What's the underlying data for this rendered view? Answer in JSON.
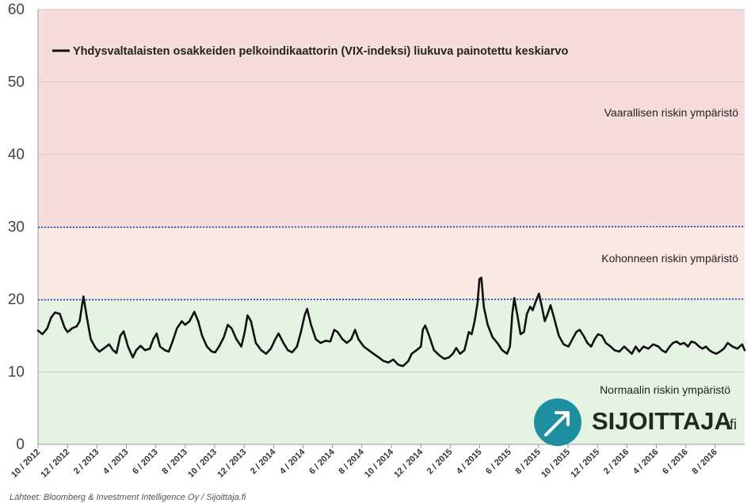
{
  "chart_data": {
    "type": "line",
    "title": "",
    "xlabel": "",
    "ylabel": "",
    "ylim": [
      0,
      60
    ],
    "yticks": [
      0,
      10,
      20,
      30,
      40,
      50,
      60
    ],
    "xlim": [
      "2012-10-01",
      "2016-09-30"
    ],
    "xtick_labels": [
      "10 / 2012",
      "12 / 2012",
      "2 / 2013",
      "4 / 2013",
      "6 / 2013",
      "8 / 2013",
      "10 / 2013",
      "12 / 2013",
      "2 / 2014",
      "4 / 2014",
      "6 / 2014",
      "8 / 2014",
      "10 / 2014",
      "12 / 2014",
      "2 / 2015",
      "4 / 2015",
      "6 / 2015",
      "8 / 2015",
      "10 / 2015",
      "12 / 2015",
      "2 / 2016",
      "4 / 2016",
      "6 / 2016",
      "8 / 2016"
    ],
    "grid": "horizontal",
    "legend_placement": "top-left",
    "zones": [
      {
        "label": "Vaarallisen riskin ympäristö",
        "from": 30,
        "to": 60,
        "color": "#f6dcdc"
      },
      {
        "label": "Kohonneen riskin ympäristö",
        "from": 20,
        "to": 30,
        "color": "#f9e9e2"
      },
      {
        "label": "Normaalin riskin ympäristö",
        "from": 0,
        "to": 20,
        "color": "#e5f4e2"
      }
    ],
    "threshold_lines": [
      20,
      30
    ],
    "colors": {
      "line": "#111111",
      "threshold": "#2a5aa8",
      "grid": "#d0c8c8"
    },
    "series": [
      {
        "name": "Yhdysvaltalaisten osakkeiden pelkoindikaattorin (VIX-indeksi) liukuva painotettu keskiarvo",
        "points": [
          [
            "2012-10-01",
            15.7
          ],
          [
            "2012-10-10",
            15.2
          ],
          [
            "2012-10-20",
            16.0
          ],
          [
            "2012-10-28",
            17.5
          ],
          [
            "2012-11-05",
            18.2
          ],
          [
            "2012-11-15",
            18.0
          ],
          [
            "2012-11-25",
            16.1
          ],
          [
            "2012-12-01",
            15.5
          ],
          [
            "2012-12-10",
            16.0
          ],
          [
            "2012-12-20",
            16.3
          ],
          [
            "2012-12-26",
            17.0
          ],
          [
            "2012-12-31",
            19.2
          ],
          [
            "2013-01-03",
            20.4
          ],
          [
            "2013-01-10",
            17.5
          ],
          [
            "2013-01-18",
            14.5
          ],
          [
            "2013-01-28",
            13.3
          ],
          [
            "2013-02-05",
            12.8
          ],
          [
            "2013-02-15",
            13.3
          ],
          [
            "2013-02-25",
            13.8
          ],
          [
            "2013-03-05",
            13.0
          ],
          [
            "2013-03-12",
            12.6
          ],
          [
            "2013-03-20",
            15.0
          ],
          [
            "2013-03-27",
            15.6
          ],
          [
            "2013-04-05",
            13.5
          ],
          [
            "2013-04-15",
            12.0
          ],
          [
            "2013-04-22",
            13.0
          ],
          [
            "2013-05-01",
            13.6
          ],
          [
            "2013-05-10",
            13.0
          ],
          [
            "2013-05-20",
            13.2
          ],
          [
            "2013-05-27",
            14.5
          ],
          [
            "2013-06-03",
            15.3
          ],
          [
            "2013-06-10",
            13.5
          ],
          [
            "2013-06-20",
            13.0
          ],
          [
            "2013-06-28",
            12.8
          ],
          [
            "2013-07-05",
            14.0
          ],
          [
            "2013-07-15",
            16.0
          ],
          [
            "2013-07-25",
            17.0
          ],
          [
            "2013-08-01",
            16.5
          ],
          [
            "2013-08-10",
            17.0
          ],
          [
            "2013-08-20",
            18.3
          ],
          [
            "2013-08-28",
            17.0
          ],
          [
            "2013-09-05",
            15.0
          ],
          [
            "2013-09-15",
            13.5
          ],
          [
            "2013-09-25",
            12.8
          ],
          [
            "2013-10-02",
            12.7
          ],
          [
            "2013-10-10",
            13.5
          ],
          [
            "2013-10-20",
            14.8
          ],
          [
            "2013-10-28",
            16.5
          ],
          [
            "2013-11-05",
            16.0
          ],
          [
            "2013-11-15",
            14.5
          ],
          [
            "2013-11-25",
            13.5
          ],
          [
            "2013-12-02",
            15.5
          ],
          [
            "2013-12-08",
            17.8
          ],
          [
            "2013-12-15",
            17.0
          ],
          [
            "2013-12-25",
            14.0
          ],
          [
            "2014-01-05",
            13.0
          ],
          [
            "2014-01-15",
            12.5
          ],
          [
            "2014-01-25",
            13.2
          ],
          [
            "2014-02-03",
            14.5
          ],
          [
            "2014-02-10",
            15.3
          ],
          [
            "2014-02-20",
            14.0
          ],
          [
            "2014-03-01",
            13.0
          ],
          [
            "2014-03-10",
            12.7
          ],
          [
            "2014-03-20",
            13.5
          ],
          [
            "2014-03-28",
            15.5
          ],
          [
            "2014-04-05",
            17.8
          ],
          [
            "2014-04-10",
            18.7
          ],
          [
            "2014-04-18",
            16.5
          ],
          [
            "2014-04-28",
            14.5
          ],
          [
            "2014-05-08",
            14.0
          ],
          [
            "2014-05-18",
            14.3
          ],
          [
            "2014-05-28",
            14.2
          ],
          [
            "2014-06-05",
            15.8
          ],
          [
            "2014-06-12",
            15.5
          ],
          [
            "2014-06-22",
            14.5
          ],
          [
            "2014-07-01",
            14.0
          ],
          [
            "2014-07-10",
            14.5
          ],
          [
            "2014-07-18",
            15.8
          ],
          [
            "2014-07-25",
            14.5
          ],
          [
            "2014-08-05",
            13.5
          ],
          [
            "2014-08-15",
            13.0
          ],
          [
            "2014-08-25",
            12.5
          ],
          [
            "2014-09-05",
            12.0
          ],
          [
            "2014-09-15",
            11.5
          ],
          [
            "2014-09-25",
            11.3
          ],
          [
            "2014-10-05",
            11.7
          ],
          [
            "2014-10-15",
            11.0
          ],
          [
            "2014-10-25",
            10.8
          ],
          [
            "2014-11-05",
            11.5
          ],
          [
            "2014-11-12",
            12.5
          ],
          [
            "2014-11-22",
            13.0
          ],
          [
            "2014-12-01",
            13.5
          ],
          [
            "2014-12-05",
            15.8
          ],
          [
            "2014-12-10",
            16.4
          ],
          [
            "2014-12-18",
            15.0
          ],
          [
            "2014-12-28",
            13.0
          ],
          [
            "2015-01-08",
            12.3
          ],
          [
            "2015-01-18",
            11.8
          ],
          [
            "2015-01-28",
            12.0
          ],
          [
            "2015-02-05",
            12.5
          ],
          [
            "2015-02-12",
            13.3
          ],
          [
            "2015-02-20",
            12.5
          ],
          [
            "2015-03-01",
            13.0
          ],
          [
            "2015-03-10",
            15.5
          ],
          [
            "2015-03-16",
            15.2
          ],
          [
            "2015-03-22",
            17.0
          ],
          [
            "2015-03-28",
            19.5
          ],
          [
            "2015-04-01",
            22.8
          ],
          [
            "2015-04-05",
            23.0
          ],
          [
            "2015-04-10",
            19.0
          ],
          [
            "2015-04-18",
            16.5
          ],
          [
            "2015-04-28",
            14.8
          ],
          [
            "2015-05-08",
            14.0
          ],
          [
            "2015-05-18",
            13.0
          ],
          [
            "2015-05-28",
            12.5
          ],
          [
            "2015-06-03",
            13.5
          ],
          [
            "2015-06-08",
            18.0
          ],
          [
            "2015-06-12",
            20.2
          ],
          [
            "2015-06-18",
            18.0
          ],
          [
            "2015-06-25",
            15.2
          ],
          [
            "2015-07-02",
            15.5
          ],
          [
            "2015-07-08",
            18.0
          ],
          [
            "2015-07-15",
            19.0
          ],
          [
            "2015-07-20",
            18.5
          ],
          [
            "2015-07-28",
            20.0
          ],
          [
            "2015-08-02",
            20.8
          ],
          [
            "2015-08-08",
            19.0
          ],
          [
            "2015-08-14",
            17.0
          ],
          [
            "2015-08-20",
            18.0
          ],
          [
            "2015-08-26",
            19.2
          ],
          [
            "2015-09-02",
            17.5
          ],
          [
            "2015-09-12",
            15.0
          ],
          [
            "2015-09-22",
            13.8
          ],
          [
            "2015-10-02",
            13.5
          ],
          [
            "2015-10-10",
            14.5
          ],
          [
            "2015-10-18",
            15.5
          ],
          [
            "2015-10-25",
            15.8
          ],
          [
            "2015-11-02",
            15.0
          ],
          [
            "2015-11-10",
            14.0
          ],
          [
            "2015-11-18",
            13.5
          ],
          [
            "2015-11-25",
            14.5
          ],
          [
            "2015-12-02",
            15.2
          ],
          [
            "2015-12-10",
            15.0
          ],
          [
            "2015-12-18",
            14.0
          ],
          [
            "2015-12-28",
            13.5
          ],
          [
            "2016-01-05",
            13.0
          ],
          [
            "2016-01-15",
            12.8
          ],
          [
            "2016-01-25",
            13.5
          ],
          [
            "2016-02-02",
            13.0
          ],
          [
            "2016-02-10",
            12.5
          ],
          [
            "2016-02-18",
            13.5
          ],
          [
            "2016-02-25",
            12.8
          ],
          [
            "2016-03-05",
            13.5
          ],
          [
            "2016-03-15",
            13.2
          ],
          [
            "2016-03-25",
            13.8
          ],
          [
            "2016-04-05",
            13.5
          ],
          [
            "2016-04-12",
            13.0
          ],
          [
            "2016-04-20",
            12.7
          ],
          [
            "2016-04-28",
            13.5
          ],
          [
            "2016-05-05",
            14.0
          ],
          [
            "2016-05-12",
            14.2
          ],
          [
            "2016-05-20",
            13.8
          ],
          [
            "2016-05-28",
            14.0
          ],
          [
            "2016-06-05",
            13.5
          ],
          [
            "2016-06-12",
            14.2
          ],
          [
            "2016-06-20",
            14.0
          ],
          [
            "2016-06-28",
            13.5
          ],
          [
            "2016-07-05",
            13.2
          ],
          [
            "2016-07-12",
            13.5
          ],
          [
            "2016-07-19",
            13.0
          ],
          [
            "2016-07-26",
            12.7
          ],
          [
            "2016-08-02",
            12.5
          ],
          [
            "2016-08-10",
            12.8
          ],
          [
            "2016-08-18",
            13.2
          ],
          [
            "2016-08-26",
            14.0
          ],
          [
            "2016-09-05",
            13.5
          ],
          [
            "2016-09-15",
            13.2
          ],
          [
            "2016-09-25",
            13.8
          ],
          [
            "2016-09-30",
            13.0
          ]
        ]
      }
    ],
    "zone_labels": {
      "high": "Vaarallisen riskin ympäristö",
      "elevated": "Kohonneen riskin ympäristö",
      "normal": "Normaalin riskin ympäristö"
    },
    "source": "Lähteet: Bloomberg & Investment Intelligence Oy / Sijoittaja.fi"
  },
  "logo": {
    "brand": "SIJOITTAJA",
    "suffix": ".fi",
    "color": "#1e8fa0"
  }
}
